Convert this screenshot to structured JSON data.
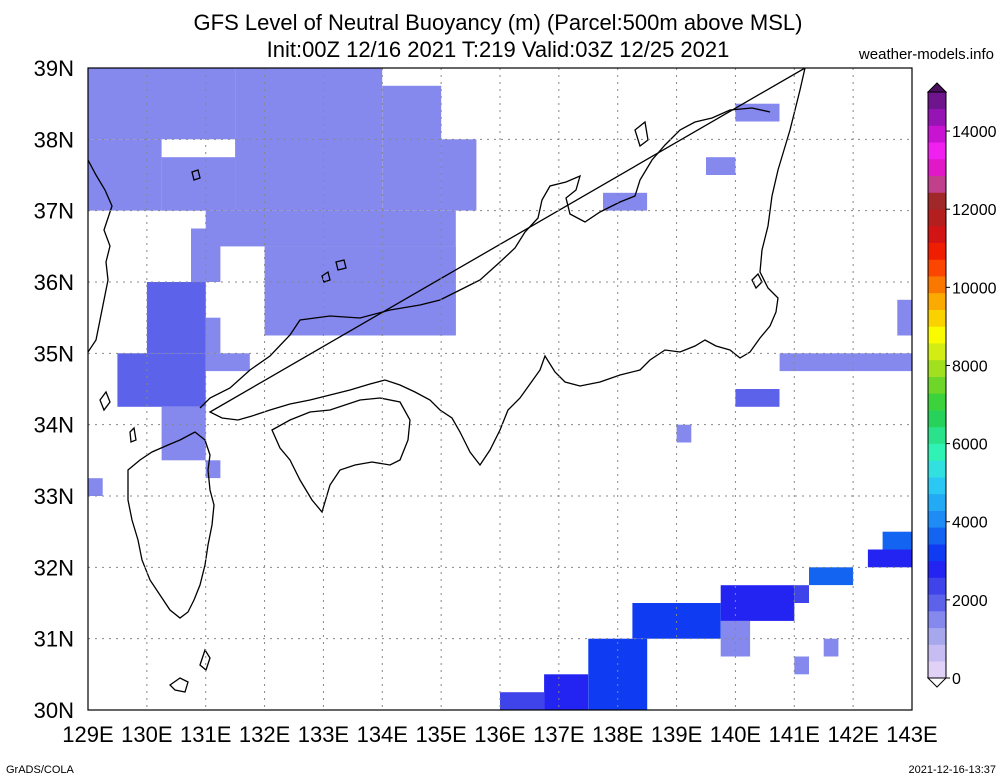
{
  "header": {
    "title_line1": "GFS Level of Neutral Buoyancy (m) (Parcel:500m above MSL)",
    "title_line2": "Init:00Z 12/16 2021 T:219 Valid:03Z 12/25 2021",
    "site": "weather-models.info"
  },
  "footer": {
    "left": "GrADS/COLA",
    "right": "2021-12-16-13:37"
  },
  "chart_data": {
    "type": "heatmap",
    "title": "GFS Level of Neutral Buoyancy (m) (Parcel:500m above MSL)",
    "subtitle": "Init:00Z 12/16 2021 T:219 Valid:03Z 12/25 2021",
    "xlabel": "",
    "ylabel": "",
    "xlim": [
      129,
      143
    ],
    "ylim": [
      30,
      39
    ],
    "x_ticks": [
      "129E",
      "130E",
      "131E",
      "132E",
      "133E",
      "134E",
      "135E",
      "136E",
      "137E",
      "138E",
      "139E",
      "140E",
      "141E",
      "142E",
      "143E"
    ],
    "y_ticks": [
      "30N",
      "31N",
      "32N",
      "33N",
      "34N",
      "35N",
      "36N",
      "37N",
      "38N",
      "39N"
    ],
    "grid": true,
    "colorbar": {
      "levels": [
        0,
        2000,
        4000,
        6000,
        8000,
        10000,
        12000,
        14000
      ],
      "labels": [
        "0",
        "2000",
        "4000",
        "6000",
        "8000",
        "10000",
        "12000",
        "14000"
      ],
      "max": 15000,
      "colors": [
        "#e1d1f6",
        "#c7bdf2",
        "#a7a7ee",
        "#8588ec",
        "#5c63ea",
        "#3f43ea",
        "#2424f2",
        "#0f3cf2",
        "#1464f2",
        "#1e8cf4",
        "#23aaf4",
        "#2bc8f4",
        "#32e0e0",
        "#2ff2b4",
        "#2ae28a",
        "#26d25a",
        "#3cd23c",
        "#6ed628",
        "#a0e01e",
        "#d2ec14",
        "#fafa00",
        "#fad200",
        "#faaa00",
        "#fa7800",
        "#fa4600",
        "#f01e00",
        "#d21414",
        "#b41e1e",
        "#a02828",
        "#c0408c",
        "#e018c8",
        "#f020f0",
        "#c814d2",
        "#9614b4",
        "#6e148c"
      ],
      "position": "right"
    },
    "cells": [
      {
        "lon": 129.0,
        "lat": 38.0,
        "w": 2.5,
        "h": 1.0,
        "value": 1500
      },
      {
        "lon": 131.5,
        "lat": 37.0,
        "w": 2.5,
        "h": 2.0,
        "value": 1500
      },
      {
        "lon": 134.0,
        "lat": 37.0,
        "w": 1.0,
        "h": 1.75,
        "value": 1500
      },
      {
        "lon": 135.0,
        "lat": 37.0,
        "w": 0.6,
        "h": 1.0,
        "value": 1500
      },
      {
        "lon": 129.0,
        "lat": 37.0,
        "w": 1.25,
        "h": 1.0,
        "value": 1500
      },
      {
        "lon": 130.25,
        "lat": 37.0,
        "w": 1.25,
        "h": 0.75,
        "value": 1500
      },
      {
        "lon": 131.0,
        "lat": 36.5,
        "w": 4.25,
        "h": 0.5,
        "value": 1500
      },
      {
        "lon": 132.0,
        "lat": 35.25,
        "w": 3.25,
        "h": 1.25,
        "value": 1500
      },
      {
        "lon": 130.75,
        "lat": 36.0,
        "w": 0.5,
        "h": 0.75,
        "value": 1500
      },
      {
        "lon": 130.0,
        "lat": 35.0,
        "w": 1.0,
        "h": 1.0,
        "value": 1800
      },
      {
        "lon": 131.0,
        "lat": 35.0,
        "w": 0.25,
        "h": 0.5,
        "value": 1500
      },
      {
        "lon": 131.0,
        "lat": 34.75,
        "w": 0.75,
        "h": 0.25,
        "value": 1500
      },
      {
        "lon": 129.5,
        "lat": 34.25,
        "w": 1.5,
        "h": 0.75,
        "value": 1800
      },
      {
        "lon": 130.25,
        "lat": 33.5,
        "w": 0.75,
        "h": 0.75,
        "value": 1500
      },
      {
        "lon": 131.0,
        "lat": 33.25,
        "w": 0.25,
        "h": 0.25,
        "value": 1500
      },
      {
        "lon": 129.0,
        "lat": 33.0,
        "w": 0.25,
        "h": 0.25,
        "value": 1500
      },
      {
        "lon": 140.0,
        "lat": 38.25,
        "w": 0.75,
        "h": 0.25,
        "value": 1500
      },
      {
        "lon": 139.5,
        "lat": 37.5,
        "w": 0.5,
        "h": 0.25,
        "value": 1500
      },
      {
        "lon": 137.75,
        "lat": 37.0,
        "w": 0.75,
        "h": 0.25,
        "value": 1500
      },
      {
        "lon": 140.0,
        "lat": 34.25,
        "w": 0.75,
        "h": 0.25,
        "value": 1800
      },
      {
        "lon": 139.0,
        "lat": 33.75,
        "w": 0.25,
        "h": 0.25,
        "value": 1500
      },
      {
        "lon": 140.75,
        "lat": 34.75,
        "w": 2.25,
        "h": 0.25,
        "value": 1500
      },
      {
        "lon": 143.0,
        "lat": 35.25,
        "w": -0.25,
        "h": 0.5,
        "value": 1500
      },
      {
        "lon": 138.25,
        "lat": 31.0,
        "w": 1.5,
        "h": 0.5,
        "value": 3300
      },
      {
        "lon": 137.5,
        "lat": 30.0,
        "w": 1.0,
        "h": 1.0,
        "value": 3000
      },
      {
        "lon": 136.75,
        "lat": 30.0,
        "w": 0.75,
        "h": 0.5,
        "value": 2700
      },
      {
        "lon": 136.0,
        "lat": 30.0,
        "w": 0.75,
        "h": 0.25,
        "value": 2300
      },
      {
        "lon": 139.75,
        "lat": 30.75,
        "w": 0.5,
        "h": 0.5,
        "value": 1300
      },
      {
        "lon": 139.75,
        "lat": 31.25,
        "w": 1.25,
        "h": 0.5,
        "value": 2900
      },
      {
        "lon": 141.0,
        "lat": 31.5,
        "w": 0.25,
        "h": 0.25,
        "value": 2300
      },
      {
        "lon": 141.25,
        "lat": 31.75,
        "w": 0.75,
        "h": 0.25,
        "value": 3600
      },
      {
        "lon": 142.25,
        "lat": 32.0,
        "w": 0.75,
        "h": 0.25,
        "value": 2600
      },
      {
        "lon": 142.5,
        "lat": 32.25,
        "w": 0.5,
        "h": 0.25,
        "value": 3700
      },
      {
        "lon": 141.0,
        "lat": 30.5,
        "w": 0.25,
        "h": 0.25,
        "value": 1500
      },
      {
        "lon": 141.5,
        "lat": 30.75,
        "w": 0.25,
        "h": 0.25,
        "value": 1500
      }
    ]
  }
}
